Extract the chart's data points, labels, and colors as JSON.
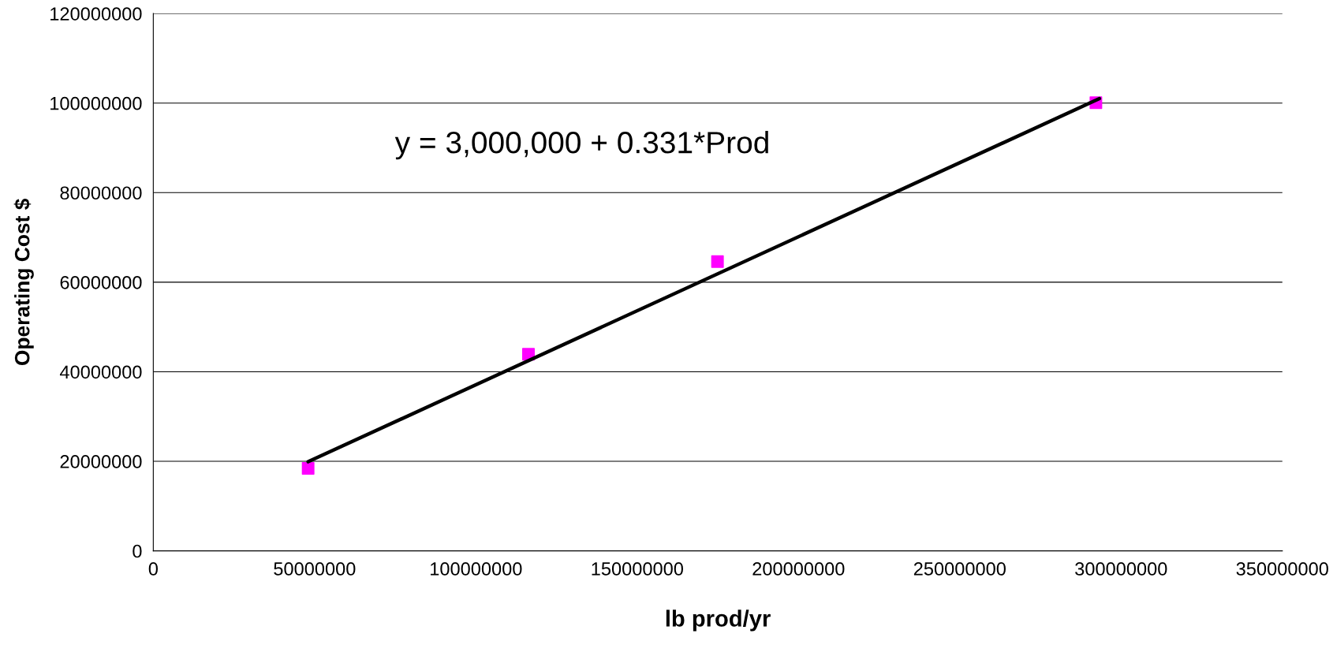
{
  "chart_data": {
    "type": "scatter",
    "xlabel": "lb prod/yr",
    "ylabel": "Operating Cost $",
    "annotations": [
      "y = 3,000,000 + 0.331*Prod"
    ],
    "series": [
      {
        "color": "#ff00ff",
        "marker": "square",
        "x": [
          48000000,
          116300000,
          174900000,
          292200000
        ],
        "values": [
          18400000,
          43900000,
          64600000,
          100100000
        ]
      },
      {
        "type": "line",
        "color": "#000000",
        "marker": "none",
        "line_style": "solid",
        "x": [
          48000000,
          293300000
        ],
        "values": [
          19900000,
          101000000
        ]
      }
    ],
    "xlim": [
      0,
      350000000
    ],
    "xticks": [
      0,
      50000000,
      100000000,
      150000000,
      200000000,
      250000000,
      300000000,
      350000000
    ],
    "ylim": [
      0,
      120000000
    ],
    "yticks": [
      0,
      20000000,
      40000000,
      60000000,
      80000000,
      100000000,
      120000000
    ],
    "grid": "y"
  }
}
